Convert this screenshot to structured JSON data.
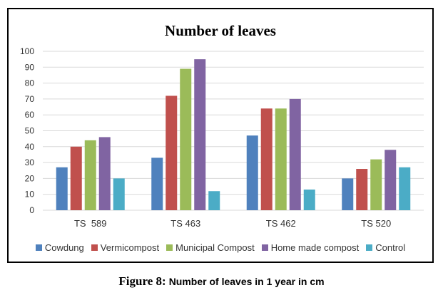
{
  "chart_data": {
    "type": "bar",
    "title": "Number of leaves",
    "categories": [
      "TS  589",
      "TS 463",
      "TS 462",
      "TS 520"
    ],
    "series": [
      {
        "name": "Cowdung",
        "color": "#4F81BD",
        "values": [
          27,
          33,
          47,
          20
        ]
      },
      {
        "name": "Vermicompost",
        "color": "#C0504D",
        "values": [
          40,
          72,
          64,
          26
        ]
      },
      {
        "name": "Municipal Compost",
        "color": "#9BBB59",
        "values": [
          44,
          89,
          64,
          32
        ]
      },
      {
        "name": "Home made compost",
        "color": "#8064A2",
        "values": [
          46,
          95,
          70,
          38
        ]
      },
      {
        "name": "Control",
        "color": "#4BACC6",
        "values": [
          20,
          12,
          13,
          27
        ]
      }
    ],
    "ylim": [
      0,
      100
    ],
    "yticks": [
      0,
      10,
      20,
      30,
      40,
      50,
      60,
      70,
      80,
      90,
      100
    ],
    "grid": true,
    "legend_position": "bottom"
  },
  "caption": {
    "label": "Figure 8:",
    "text": "Number of leaves in 1 year in cm"
  }
}
